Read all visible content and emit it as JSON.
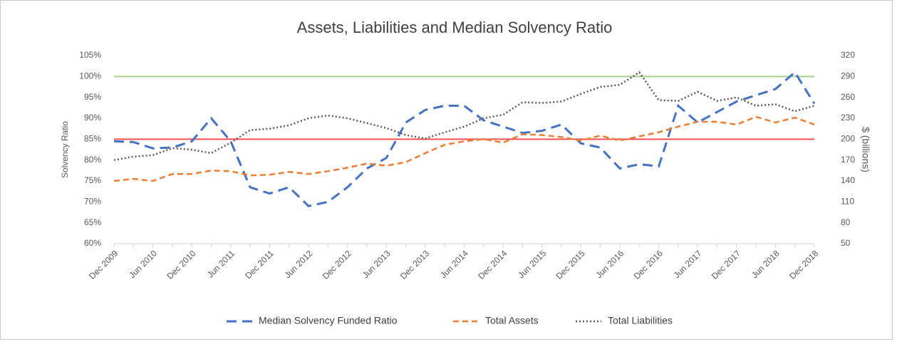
{
  "chart_data": {
    "type": "line",
    "title": "Assets, Liabilities and Median Solvency Ratio",
    "y_label": "Solvency Ratio",
    "y2_label": "$ (billions)",
    "categories": [
      "Dec 2009",
      null,
      "Jun 2010",
      null,
      "Dec 2010",
      null,
      "Jun 2011",
      null,
      "Dec 2011",
      null,
      "Jun 2012",
      null,
      "Dec 2012",
      null,
      "Jun 2013",
      null,
      "Dec 2013",
      null,
      "Jun 2014",
      null,
      "Dec 2014",
      null,
      "Jun 2015",
      null,
      "Dec 2015",
      null,
      "Jun 2016",
      null,
      "Dec 2016",
      null,
      "Jun 2017",
      null,
      "Dec 2017",
      null,
      "Jun 2018",
      null,
      "Dec 2018"
    ],
    "ylim": [
      60,
      105
    ],
    "yticks": [
      {
        "value": 60,
        "label": "60%"
      },
      {
        "value": 65,
        "label": "65%"
      },
      {
        "value": 70,
        "label": "70%"
      },
      {
        "value": 75,
        "label": "75%"
      },
      {
        "value": 80,
        "label": "80%"
      },
      {
        "value": 85,
        "label": "85%"
      },
      {
        "value": 90,
        "label": "90%"
      },
      {
        "value": 95,
        "label": "95%"
      },
      {
        "value": 100,
        "label": "100%"
      },
      {
        "value": 105,
        "label": "105%"
      }
    ],
    "y2lim": [
      50,
      320
    ],
    "y2ticks": [
      50,
      80,
      110,
      140,
      170,
      200,
      230,
      260,
      290,
      320
    ],
    "reference_lines": [
      {
        "value": 85,
        "color": "#f05050"
      },
      {
        "value": 100,
        "color": "#a9d18e"
      }
    ],
    "legend": "bottom",
    "series": [
      {
        "name": "Median Solvency Funded Ratio",
        "color": "#4472c4",
        "dash": "14 8",
        "values": [
          84.5,
          84.3,
          82.8,
          83,
          84.5,
          90,
          84.5,
          73.5,
          72,
          73.5,
          69,
          70,
          73.5,
          78,
          80.5,
          89,
          92,
          93,
          93,
          89.5,
          88,
          86.5,
          87,
          88.5,
          84,
          83,
          78,
          79,
          78.5,
          93,
          89,
          91.5,
          94,
          95.5,
          97,
          101,
          93.5
        ]
      },
      {
        "name": "Total Assets",
        "color": "#ed7d31",
        "dash": "8 5",
        "axis": "y2",
        "values": [
          140,
          143,
          140,
          150,
          150,
          155,
          154,
          148,
          149,
          153,
          150,
          154,
          159,
          165,
          162,
          167,
          180,
          192,
          197,
          200,
          195,
          207,
          206,
          203,
          198,
          205,
          198,
          204,
          210,
          218,
          225,
          225,
          221,
          232,
          224,
          231,
          221
        ]
      },
      {
        "name": "Total Liabilities",
        "color": "#595959",
        "dash": "2 3",
        "axis": "y2",
        "values": [
          170,
          175,
          177,
          187,
          185,
          180,
          195,
          213,
          215,
          220,
          230,
          234,
          230,
          223,
          216,
          206,
          201,
          210,
          218,
          230,
          235,
          253,
          252,
          254,
          265,
          275,
          278,
          296,
          256,
          255,
          268,
          255,
          260,
          248,
          250,
          240,
          248
        ]
      }
    ]
  }
}
